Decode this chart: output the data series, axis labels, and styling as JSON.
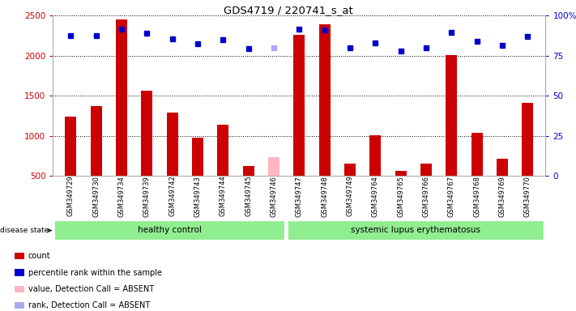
{
  "title": "GDS4719 / 220741_s_at",
  "categories": [
    "GSM349729",
    "GSM349730",
    "GSM349734",
    "GSM349739",
    "GSM349742",
    "GSM349743",
    "GSM349744",
    "GSM349745",
    "GSM349746",
    "GSM349747",
    "GSM349748",
    "GSM349749",
    "GSM349764",
    "GSM349765",
    "GSM349766",
    "GSM349767",
    "GSM349768",
    "GSM349769",
    "GSM349770"
  ],
  "bar_values": [
    1240,
    1370,
    2450,
    1560,
    1290,
    970,
    1140,
    620,
    730,
    2260,
    2390,
    650,
    1010,
    560,
    650,
    2010,
    1040,
    710,
    1410
  ],
  "bar_absent": [
    false,
    false,
    false,
    false,
    false,
    false,
    false,
    false,
    true,
    false,
    false,
    false,
    false,
    false,
    false,
    false,
    false,
    false,
    false
  ],
  "percentile_values": [
    2250,
    2250,
    2330,
    2280,
    2210,
    2150,
    2200,
    2090,
    2100,
    2330,
    2320,
    2100,
    2160,
    2060,
    2100,
    2290,
    2180,
    2130,
    2240
  ],
  "percentile_absent": [
    false,
    false,
    false,
    false,
    false,
    false,
    false,
    false,
    true,
    false,
    false,
    false,
    false,
    false,
    false,
    false,
    false,
    false,
    false
  ],
  "group_labels": [
    "healthy control",
    "systemic lupus erythematosus"
  ],
  "group_split": 9,
  "ylim_left": [
    500,
    2500
  ],
  "yticks_left": [
    500,
    1000,
    1500,
    2000,
    2500
  ],
  "yticks_right": [
    0,
    25,
    50,
    75,
    100
  ],
  "left_color": "#cc0000",
  "right_color": "#0000cc",
  "bar_color": "#cc0000",
  "bar_absent_color": "#ffb6c1",
  "dot_color": "#0000cc",
  "dot_absent_color": "#aaaaee",
  "bg_color": "#ffffff",
  "legend_items": [
    "count",
    "percentile rank within the sample",
    "value, Detection Call = ABSENT",
    "rank, Detection Call = ABSENT"
  ],
  "legend_colors": [
    "#cc0000",
    "#0000cc",
    "#ffb6c1",
    "#aaaaee"
  ]
}
